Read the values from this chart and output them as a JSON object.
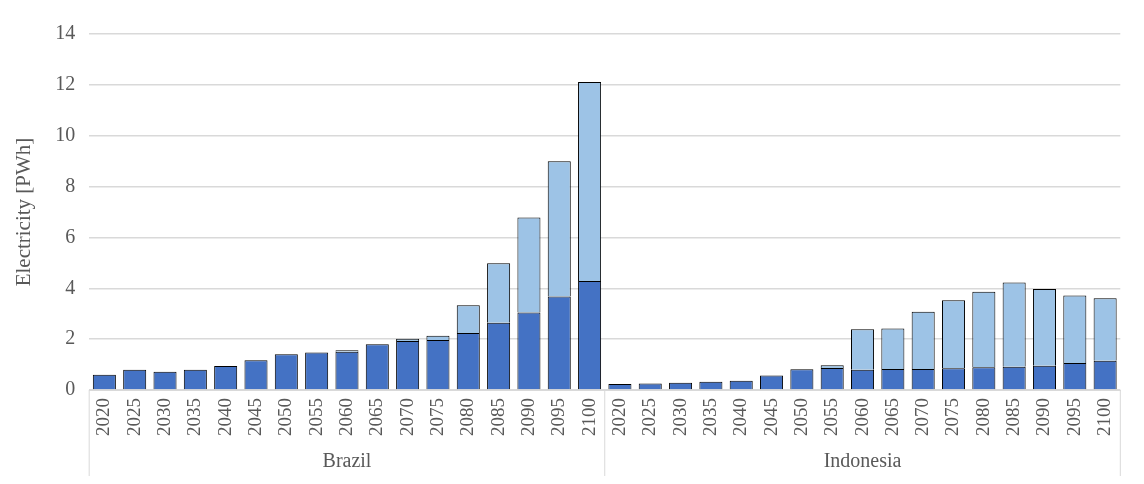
{
  "chart_data": {
    "type": "bar",
    "stacked": true,
    "ylabel": "Electricity [PWh]",
    "categories": [
      "2020",
      "2025",
      "2030",
      "2035",
      "2040",
      "2045",
      "2050",
      "2055",
      "2060",
      "2065",
      "2070",
      "2075",
      "2080",
      "2085",
      "2090",
      "2095",
      "2100",
      "2020",
      "2025",
      "2030",
      "2035",
      "2040",
      "2045",
      "2050",
      "2055",
      "2060",
      "2065",
      "2070",
      "2075",
      "2080",
      "2085",
      "2090",
      "2095",
      "2100"
    ],
    "series": [
      {
        "color": "#4472c4",
        "values": [
          0.6,
          0.8,
          0.72,
          0.8,
          0.94,
          1.17,
          1.41,
          1.47,
          1.5,
          1.8,
          1.93,
          1.97,
          2.24,
          2.64,
          3.05,
          3.68,
          4.29,
          0.24,
          0.26,
          0.29,
          0.32,
          0.36,
          0.57,
          0.82,
          0.87,
          0.8,
          0.83,
          0.83,
          0.86,
          0.89,
          0.91,
          0.95,
          1.06,
          1.15
        ]
      },
      {
        "color": "#9dc3e6",
        "values": [
          null,
          null,
          null,
          null,
          null,
          null,
          null,
          null,
          0.06,
          null,
          0.09,
          0.16,
          1.09,
          2.34,
          3.73,
          5.32,
          7.82,
          null,
          null,
          null,
          null,
          null,
          null,
          null,
          0.1,
          1.59,
          1.59,
          2.25,
          2.67,
          2.97,
          3.32,
          3.02,
          2.66,
          2.46
        ]
      }
    ],
    "annotations": [
      "Brazil",
      "Indonesia"
    ],
    "ylim": [
      0,
      14
    ],
    "yticks": [
      0,
      2,
      4,
      6,
      8,
      10,
      12,
      14
    ],
    "grid": "y",
    "legend": false
  }
}
